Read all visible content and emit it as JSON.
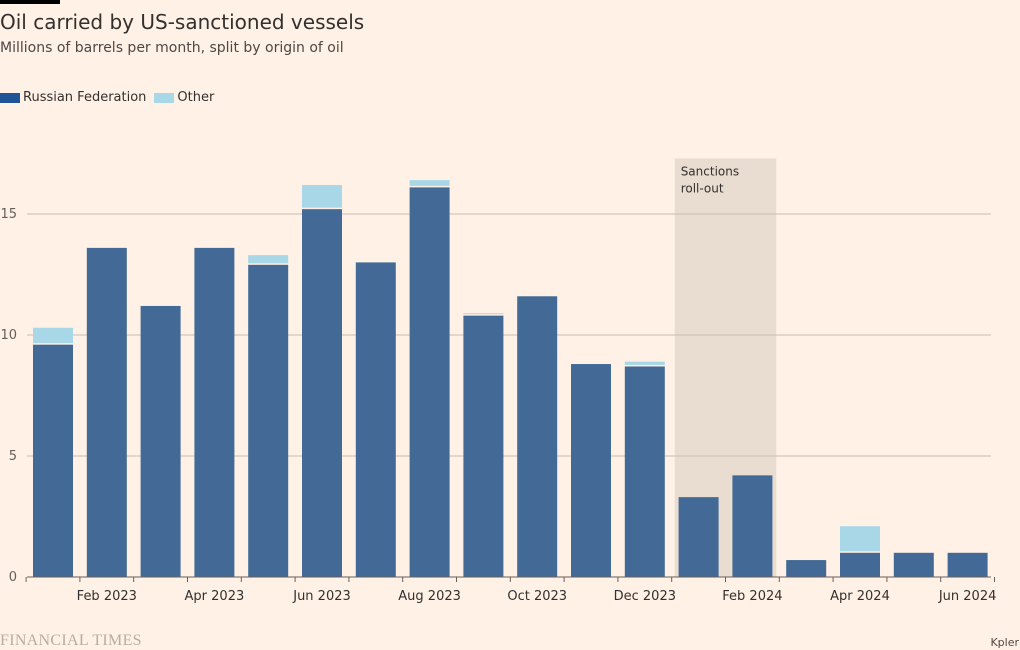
{
  "header": {
    "title": "Oil carried by US-sanctioned vessels",
    "subtitle": "Millions of barrels per month, split by origin of oil"
  },
  "footer": {
    "brand": "FINANCIAL TIMES",
    "source": "Kpler"
  },
  "colors": {
    "background": "#fff1e5",
    "russian": "#436a96",
    "other": "#a8d7e8",
    "shade": "#e9ddd1",
    "grid": "#c9bcb1",
    "text": "#33302e"
  },
  "chart_data": {
    "type": "bar",
    "stacked": true,
    "title": "Oil carried by US-sanctioned vessels",
    "subtitle": "Millions of barrels per month, split by origin of oil",
    "xlabel": "",
    "ylabel": "",
    "ylim": [
      0,
      18
    ],
    "yticks": [
      0,
      5,
      10,
      15
    ],
    "grid": true,
    "legend_position": "top-left",
    "categories": [
      "Jan 2023",
      "Feb 2023",
      "Mar 2023",
      "Apr 2023",
      "May 2023",
      "Jun 2023",
      "Jul 2023",
      "Aug 2023",
      "Sep 2023",
      "Oct 2023",
      "Nov 2023",
      "Dec 2023",
      "Jan 2024",
      "Feb 2024",
      "Mar 2024",
      "Apr 2024",
      "May 2024",
      "Jun 2024"
    ],
    "x_tick_labels": [
      {
        "category": "Feb 2023",
        "label": "Feb 2023"
      },
      {
        "category": "Apr 2023",
        "label": "Apr 2023"
      },
      {
        "category": "Jun 2023",
        "label": "Jun 2023"
      },
      {
        "category": "Aug 2023",
        "label": "Aug 2023"
      },
      {
        "category": "Oct 2023",
        "label": "Oct 2023"
      },
      {
        "category": "Dec 2023",
        "label": "Dec 2023"
      },
      {
        "category": "Feb 2024",
        "label": "Feb 2024"
      },
      {
        "category": "Apr 2024",
        "label": "Apr 2024"
      },
      {
        "category": "Jun 2024",
        "label": "Jun 2024"
      }
    ],
    "series": [
      {
        "name": "Russian Federation",
        "color": "#436a96",
        "values": [
          9.6,
          13.6,
          11.2,
          13.6,
          12.9,
          15.2,
          13.0,
          16.1,
          10.8,
          11.6,
          8.8,
          8.7,
          3.3,
          4.2,
          0.7,
          1.0,
          1.0,
          1.0
        ]
      },
      {
        "name": "Other",
        "color": "#a8d7e8",
        "values": [
          0.7,
          0.0,
          0.0,
          0.0,
          0.4,
          1.0,
          0.0,
          0.3,
          0.1,
          0.0,
          0.0,
          0.2,
          0.0,
          0.0,
          0.0,
          1.1,
          0.0,
          0.0
        ]
      }
    ],
    "annotations": [
      {
        "text_lines": [
          "Sanctions",
          "roll-out"
        ],
        "range": [
          "Jan 2024",
          "Feb 2024"
        ],
        "type": "shaded-region"
      }
    ]
  }
}
